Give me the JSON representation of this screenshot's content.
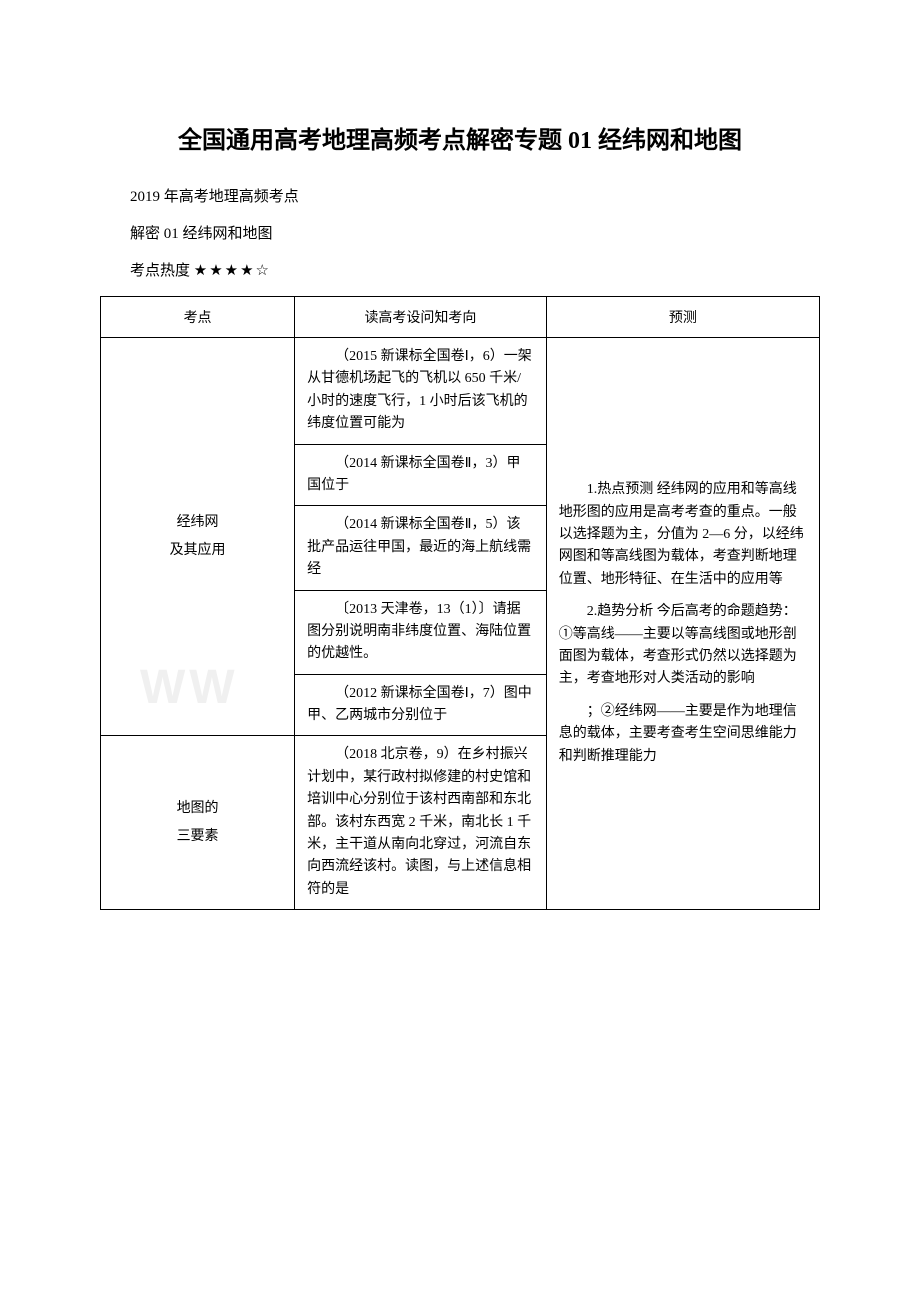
{
  "title": "全国通用高考地理高频考点解密专题 01 经纬网和地图",
  "intro1": "2019 年高考地理高频考点",
  "intro2": "解密 01 经纬网和地图",
  "intro3_label": "考点热度 ",
  "intro3_stars": "★★★★☆",
  "watermark": "WW",
  "table": {
    "headers": {
      "col1": "考点",
      "col2": "读高考设问知考向",
      "col3": "预测"
    },
    "rowgroup1": {
      "topic_line1": "经纬网",
      "topic_line2": "及其应用",
      "cells": [
        "（2015 新课标全国卷Ⅰ，6）一架从甘德机场起飞的飞机以 650 千米/小时的速度飞行，1 小时后该飞机的纬度位置可能为",
        "（2014 新课标全国卷Ⅱ，3）甲国位于",
        "（2014 新课标全国卷Ⅱ，5）该批产品运往甲国，最近的海上航线需经",
        "〔2013 天津卷，13（1）〕请据图分别说明南非纬度位置、海陆位置的优越性。",
        "（2012 新课标全国卷Ⅰ，7）图中甲、乙两城市分别位于"
      ]
    },
    "rowgroup2": {
      "topic_line1": "地图的",
      "topic_line2": "三要素",
      "cells": [
        "（2018 北京卷，9）在乡村振兴计划中，某行政村拟修建的村史馆和培训中心分别位于该村西南部和东北部。该村东西宽 2 千米，南北长 1 千米，主干道从南向北穿过，河流自东向西流经该村。读图，与上述信息相符的是"
      ]
    },
    "prediction": {
      "para1": "1.热点预测 经纬网的应用和等高线地形图的应用是高考考查的重点。一般以选择题为主，分值为 2—6 分，以经纬网图和等高线图为载体，考查判断地理位置、地形特征、在生活中的应用等",
      "para2": "2.趋势分析 今后高考的命题趋势：①等高线——主要以等高线图或地形剖面图为载体，考查形式仍然以选择题为主，考查地形对人类活动的影响",
      "para3": "；②经纬网——主要是作为地理信息的载体，主要考查考生空间思维能力和判断推理能力"
    }
  }
}
